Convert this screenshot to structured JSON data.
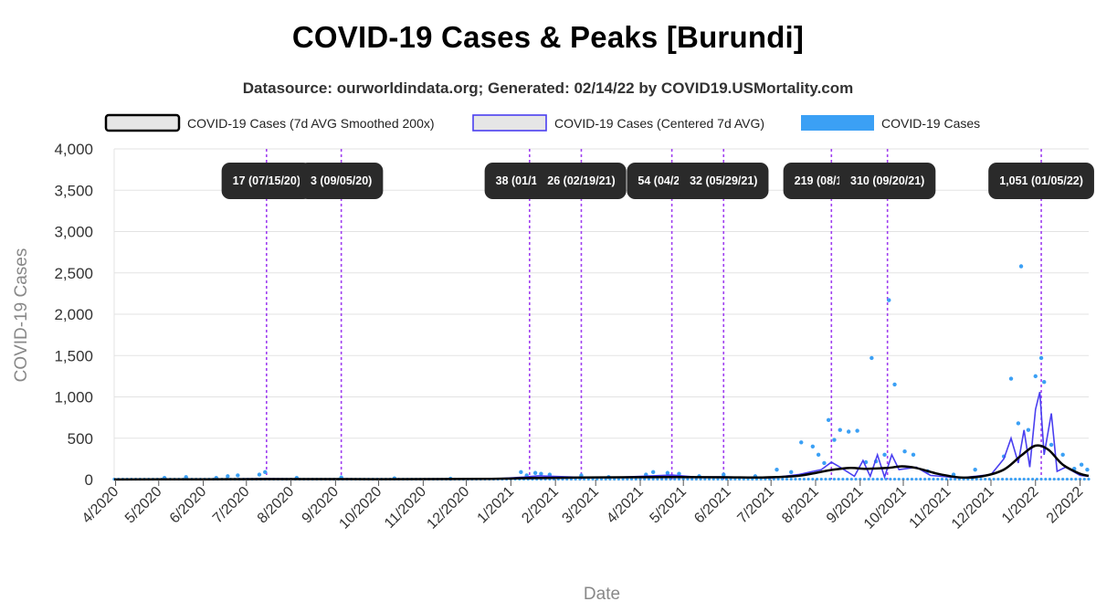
{
  "title": "COVID-19 Cases & Peaks [Burundi]",
  "subtitle": "Datasource: ourworldindata.org; Generated: 02/14/22 by COVID19.USMortality.com",
  "colors": {
    "smoothed": "#000000",
    "centered": "#4a3ff0",
    "cases": "#3ba0f5",
    "peak_line": "#a040f0",
    "peak_label_bg": "#2a2a2a",
    "legend_fill": "#e6e6e6"
  },
  "chart_data": {
    "type": "line",
    "xlabel": "Date",
    "ylabel": "COVID-19 Cases",
    "ylim": [
      0,
      4000
    ],
    "yticks": [
      0,
      500,
      1000,
      1500,
      2000,
      2500,
      3000,
      3500,
      4000
    ],
    "ytick_labels": [
      "0",
      "500",
      "1,000",
      "1,500",
      "2,000",
      "2,500",
      "3,000",
      "3,500",
      "4,000"
    ],
    "xlim": [
      "2020-03-31",
      "2022-02-07"
    ],
    "xticks": [
      "2020-04-01",
      "2020-05-01",
      "2020-06-01",
      "2020-07-01",
      "2020-08-01",
      "2020-09-01",
      "2020-10-01",
      "2020-11-01",
      "2020-12-01",
      "2021-01-01",
      "2021-02-01",
      "2021-03-01",
      "2021-04-01",
      "2021-05-01",
      "2021-06-01",
      "2021-07-01",
      "2021-08-01",
      "2021-09-01",
      "2021-10-01",
      "2021-11-01",
      "2021-12-01",
      "2022-01-01",
      "2022-02-01"
    ],
    "xtick_labels": [
      "4/2020",
      "5/2020",
      "6/2020",
      "7/2020",
      "8/2020",
      "9/2020",
      "10/2020",
      "11/2020",
      "12/2020",
      "1/2021",
      "2/2021",
      "3/2021",
      "4/2021",
      "5/2021",
      "6/2021",
      "7/2021",
      "8/2021",
      "9/2021",
      "10/2021",
      "11/2021",
      "12/2021",
      "1/2022",
      "2/2022"
    ],
    "grid": true,
    "legend_position": "top",
    "series": [
      {
        "name": "COVID-19 Cases (7d AVG Smoothed 200x)",
        "style": "line",
        "points": [
          [
            "2020-03-31",
            2
          ],
          [
            "2020-06-01",
            3
          ],
          [
            "2020-07-15",
            6
          ],
          [
            "2020-09-05",
            5
          ],
          [
            "2020-11-01",
            5
          ],
          [
            "2020-12-15",
            8
          ],
          [
            "2021-01-15",
            18
          ],
          [
            "2021-02-19",
            24
          ],
          [
            "2021-03-20",
            28
          ],
          [
            "2021-04-25",
            30
          ],
          [
            "2021-05-29",
            28
          ],
          [
            "2021-06-25",
            25
          ],
          [
            "2021-07-20",
            45
          ],
          [
            "2021-08-10",
            110
          ],
          [
            "2021-08-25",
            140
          ],
          [
            "2021-09-05",
            130
          ],
          [
            "2021-09-20",
            140
          ],
          [
            "2021-09-30",
            160
          ],
          [
            "2021-10-10",
            140
          ],
          [
            "2021-10-25",
            70
          ],
          [
            "2021-11-10",
            25
          ],
          [
            "2021-11-25",
            40
          ],
          [
            "2021-12-10",
            120
          ],
          [
            "2021-12-22",
            290
          ],
          [
            "2022-01-01",
            410
          ],
          [
            "2022-01-10",
            360
          ],
          [
            "2022-01-20",
            180
          ],
          [
            "2022-02-01",
            70
          ],
          [
            "2022-02-07",
            45
          ]
        ]
      },
      {
        "name": "COVID-19 Cases (Centered 7d AVG)",
        "style": "line",
        "points": [
          [
            "2020-03-31",
            0
          ],
          [
            "2020-07-15",
            10
          ],
          [
            "2020-09-05",
            3
          ],
          [
            "2020-12-20",
            8
          ],
          [
            "2021-01-10",
            30
          ],
          [
            "2021-01-20",
            45
          ],
          [
            "2021-02-19",
            26
          ],
          [
            "2021-03-20",
            30
          ],
          [
            "2021-04-23",
            54
          ],
          [
            "2021-05-10",
            30
          ],
          [
            "2021-05-29",
            32
          ],
          [
            "2021-07-01",
            20
          ],
          [
            "2021-07-20",
            60
          ],
          [
            "2021-08-05",
            120
          ],
          [
            "2021-08-12",
            210
          ],
          [
            "2021-08-18",
            150
          ],
          [
            "2021-08-28",
            40
          ],
          [
            "2021-09-03",
            230
          ],
          [
            "2021-09-08",
            40
          ],
          [
            "2021-09-13",
            300
          ],
          [
            "2021-09-18",
            30
          ],
          [
            "2021-09-23",
            300
          ],
          [
            "2021-09-28",
            120
          ],
          [
            "2021-10-10",
            150
          ],
          [
            "2021-10-20",
            50
          ],
          [
            "2021-11-10",
            20
          ],
          [
            "2021-12-01",
            60
          ],
          [
            "2021-12-10",
            250
          ],
          [
            "2021-12-15",
            500
          ],
          [
            "2021-12-20",
            200
          ],
          [
            "2021-12-24",
            600
          ],
          [
            "2021-12-28",
            150
          ],
          [
            "2022-01-01",
            850
          ],
          [
            "2022-01-04",
            1060
          ],
          [
            "2022-01-07",
            300
          ],
          [
            "2022-01-12",
            800
          ],
          [
            "2022-01-16",
            100
          ],
          [
            "2022-01-22",
            150
          ],
          [
            "2022-02-01",
            50
          ],
          [
            "2022-02-07",
            40
          ]
        ]
      },
      {
        "name": "COVID-19 Cases",
        "style": "scatter",
        "points": [
          [
            "2020-05-05",
            20
          ],
          [
            "2020-05-20",
            30
          ],
          [
            "2020-06-10",
            20
          ],
          [
            "2020-06-18",
            40
          ],
          [
            "2020-06-25",
            50
          ],
          [
            "2020-07-10",
            60
          ],
          [
            "2020-07-14",
            90
          ],
          [
            "2020-08-05",
            20
          ],
          [
            "2020-09-05",
            25
          ],
          [
            "2020-10-12",
            15
          ],
          [
            "2020-11-20",
            10
          ],
          [
            "2021-01-08",
            90
          ],
          [
            "2021-01-12",
            50
          ],
          [
            "2021-01-18",
            80
          ],
          [
            "2021-01-22",
            70
          ],
          [
            "2021-01-28",
            60
          ],
          [
            "2021-02-19",
            50
          ],
          [
            "2021-03-10",
            30
          ],
          [
            "2021-04-05",
            60
          ],
          [
            "2021-04-10",
            90
          ],
          [
            "2021-04-20",
            80
          ],
          [
            "2021-04-28",
            70
          ],
          [
            "2021-05-12",
            40
          ],
          [
            "2021-05-29",
            60
          ],
          [
            "2021-06-20",
            40
          ],
          [
            "2021-07-05",
            120
          ],
          [
            "2021-07-15",
            90
          ],
          [
            "2021-07-22",
            450
          ],
          [
            "2021-07-30",
            400
          ],
          [
            "2021-08-03",
            300
          ],
          [
            "2021-08-07",
            200
          ],
          [
            "2021-08-10",
            720
          ],
          [
            "2021-08-14",
            480
          ],
          [
            "2021-08-18",
            600
          ],
          [
            "2021-08-24",
            580
          ],
          [
            "2021-08-30",
            590
          ],
          [
            "2021-09-05",
            210
          ],
          [
            "2021-09-09",
            1470
          ],
          [
            "2021-09-12",
            220
          ],
          [
            "2021-09-18",
            300
          ],
          [
            "2021-09-21",
            2170
          ],
          [
            "2021-09-25",
            1150
          ],
          [
            "2021-10-02",
            340
          ],
          [
            "2021-10-08",
            300
          ],
          [
            "2021-10-18",
            100
          ],
          [
            "2021-11-05",
            60
          ],
          [
            "2021-11-20",
            120
          ],
          [
            "2021-12-10",
            280
          ],
          [
            "2021-12-15",
            1220
          ],
          [
            "2021-12-20",
            680
          ],
          [
            "2021-12-22",
            2580
          ],
          [
            "2021-12-27",
            600
          ],
          [
            "2022-01-01",
            1250
          ],
          [
            "2022-01-05",
            1470
          ],
          [
            "2022-01-07",
            1180
          ],
          [
            "2022-01-12",
            420
          ],
          [
            "2022-01-20",
            300
          ],
          [
            "2022-01-28",
            130
          ],
          [
            "2022-02-02",
            180
          ],
          [
            "2022-02-06",
            120
          ]
        ]
      }
    ],
    "peaks": [
      {
        "date": "2020-07-15",
        "label": "17 (07/15/20)"
      },
      {
        "date": "2020-09-05",
        "label": "3 (09/05/20)"
      },
      {
        "date": "2021-01-14",
        "label": "38 (01/14/21)"
      },
      {
        "date": "2021-02-19",
        "label": "26 (02/19/21)"
      },
      {
        "date": "2021-04-23",
        "label": "54 (04/23/21)"
      },
      {
        "date": "2021-05-29",
        "label": "32 (05/29/21)"
      },
      {
        "date": "2021-08-12",
        "label": "219 (08/12/21)"
      },
      {
        "date": "2021-09-20",
        "label": "310 (09/20/21)"
      },
      {
        "date": "2022-01-05",
        "label": "1,051 (01/05/22)"
      }
    ]
  }
}
